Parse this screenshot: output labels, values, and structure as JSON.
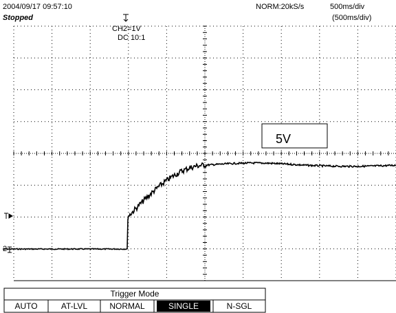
{
  "header": {
    "timestamp": "2004/09/17  09:57:10",
    "status": "Stopped",
    "sample_rate": "NORM:20kS/s",
    "timebase": "500ms/div",
    "timebase_sub": "(500ms/div)"
  },
  "channel": {
    "scale": "CH2=1V",
    "coupling": "DC  10:1",
    "ground_marker": "2"
  },
  "annotation": "5V",
  "trigger_menu": {
    "title": "Trigger Mode",
    "options": [
      "AUTO",
      "AT-LVL",
      "NORMAL",
      "SINGLE",
      "N-SGL"
    ],
    "selected": "SINGLE"
  }
}
